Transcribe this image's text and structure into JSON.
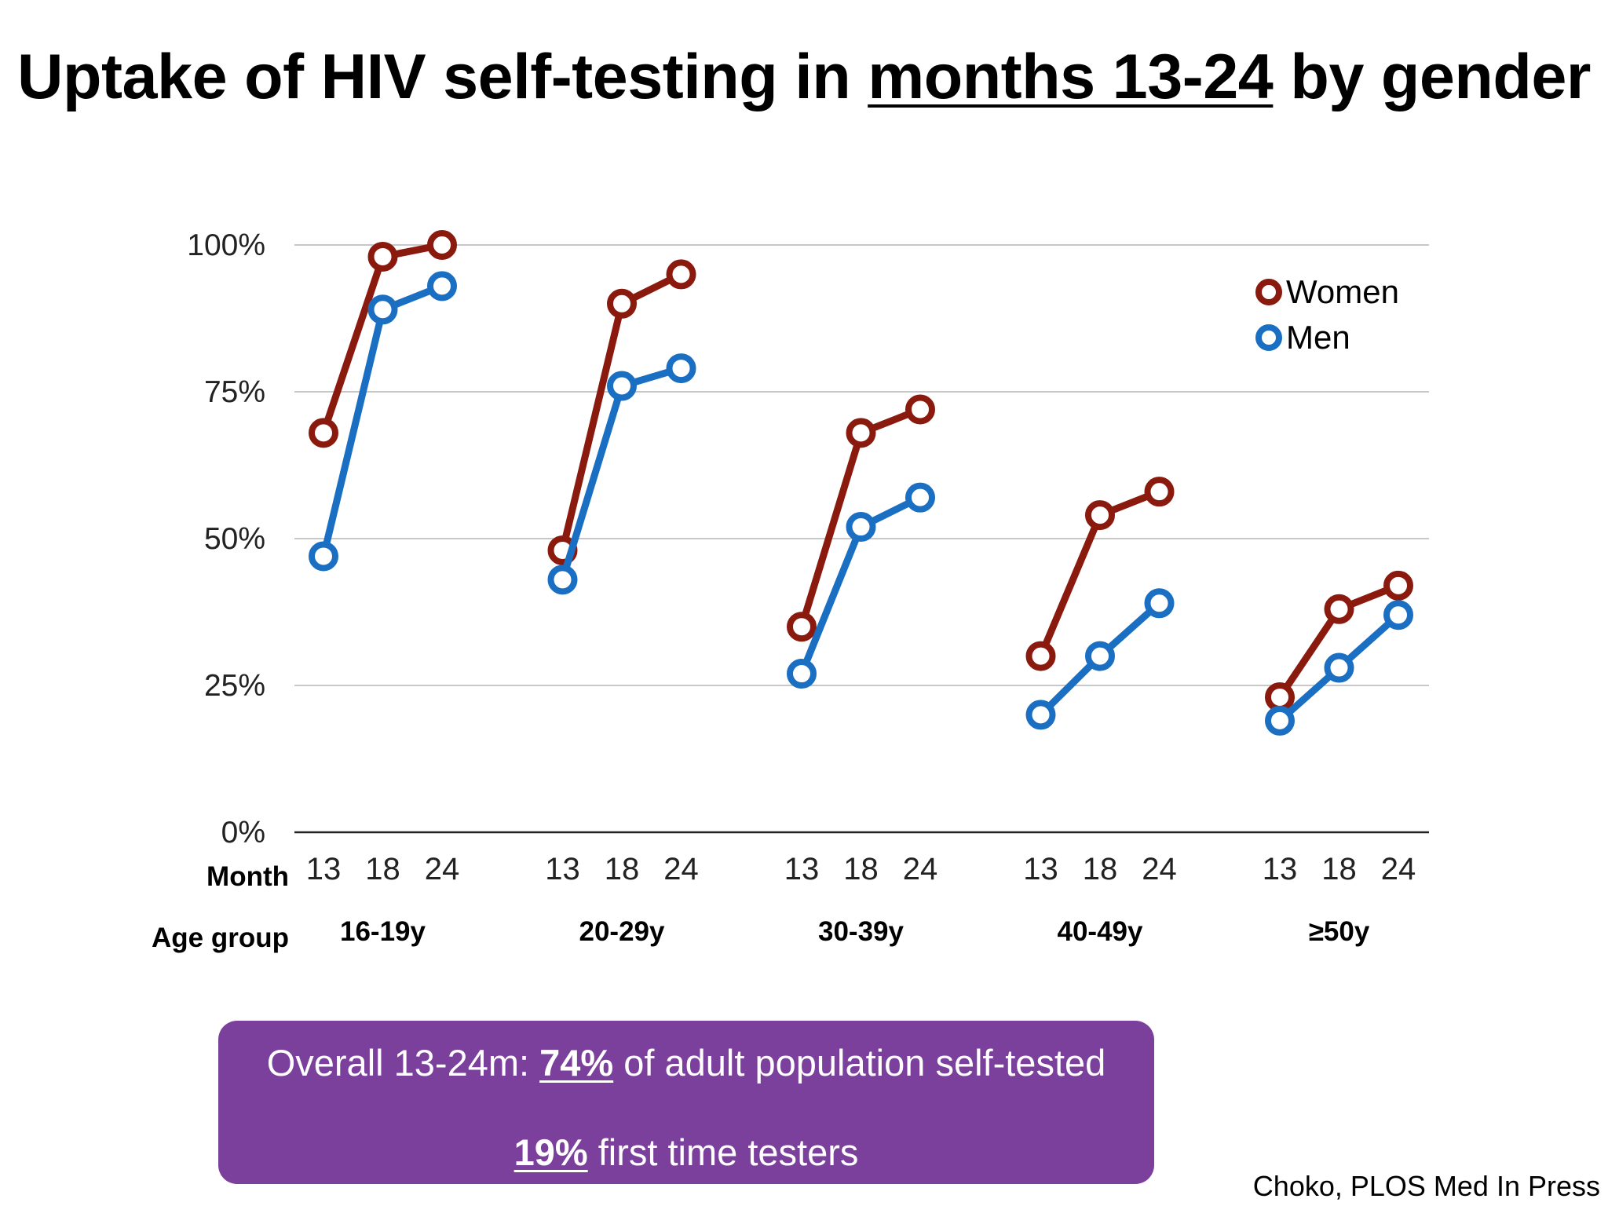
{
  "slide": {
    "title_part1": "Uptake of HIV self-testing in ",
    "title_underlined": "months 13-24",
    "title_part2": " by gender",
    "summary": {
      "line1_prefix": "Overall 13-24m: ",
      "line1_highlight": "74%",
      "line1_suffix": " of adult population self-tested",
      "line2_highlight": "19%",
      "line2_suffix": " first time testers"
    },
    "citation": "Choko, PLOS Med In Press"
  },
  "chart_data": {
    "type": "line",
    "ylim": [
      0,
      100
    ],
    "y_ticks": [
      {
        "value": 0,
        "label": "0%"
      },
      {
        "value": 25,
        "label": "25%"
      },
      {
        "value": 50,
        "label": "50%"
      },
      {
        "value": 75,
        "label": "75%"
      },
      {
        "value": 100,
        "label": "100%"
      }
    ],
    "grid": true,
    "legend": "top-right",
    "month_row_label": "Month",
    "age_row_label": "Age group",
    "months": [
      "13",
      "18",
      "24"
    ],
    "groups": [
      {
        "label": "16-19y",
        "women": [
          68,
          98,
          100
        ],
        "men": [
          47,
          89,
          93
        ]
      },
      {
        "label": "20-29y",
        "women": [
          48,
          90,
          95
        ],
        "men": [
          43,
          76,
          79
        ]
      },
      {
        "label": "30-39y",
        "women": [
          35,
          68,
          72
        ],
        "men": [
          27,
          52,
          57
        ]
      },
      {
        "label": "40-49y",
        "women": [
          30,
          54,
          58
        ],
        "men": [
          20,
          30,
          39
        ]
      },
      {
        "label": "≥50y",
        "women": [
          23,
          38,
          42
        ],
        "men": [
          19,
          28,
          37
        ]
      }
    ],
    "series": [
      {
        "key": "women",
        "name": "Women",
        "color": "#8b1a0e"
      },
      {
        "key": "men",
        "name": "Men",
        "color": "#1a6fc2"
      }
    ]
  }
}
